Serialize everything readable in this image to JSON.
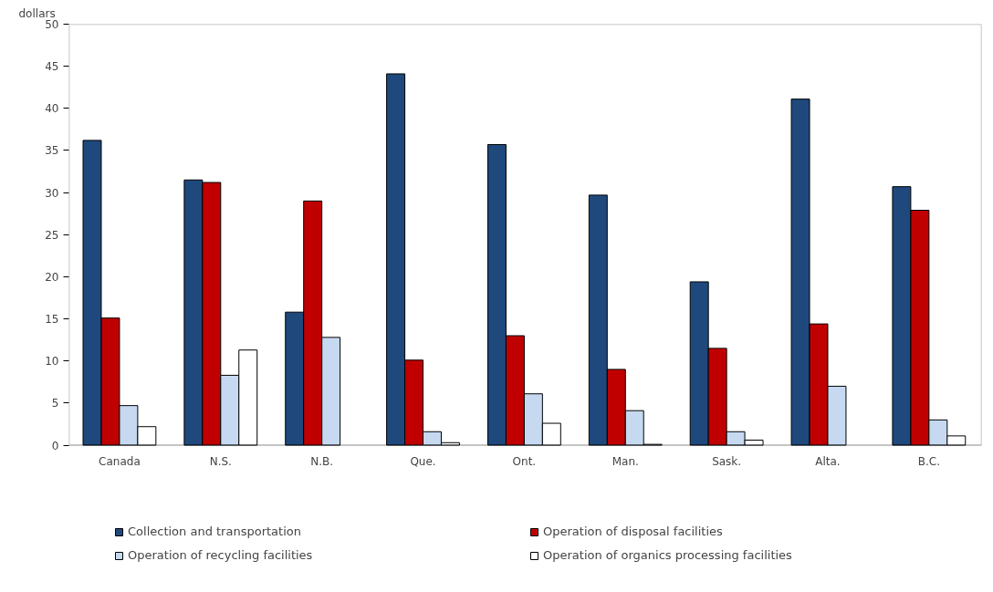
{
  "chart_data": {
    "type": "bar",
    "ylabel": "dollars",
    "categories": [
      "Canada",
      "N.S.",
      "N.B.",
      "Que.",
      "Ont.",
      "Man.",
      "Sask.",
      "Alta.",
      "B.C."
    ],
    "series": [
      {
        "name": "Collection and transportation",
        "color": "#1f497d",
        "values": [
          36.2,
          31.5,
          15.8,
          44.1,
          35.7,
          29.7,
          19.4,
          41.1,
          30.7
        ]
      },
      {
        "name": "Operation of disposal facilities",
        "color": "#c00000",
        "values": [
          15.1,
          31.2,
          29.0,
          10.1,
          13.0,
          9.0,
          11.5,
          14.4,
          27.9
        ]
      },
      {
        "name": "Operation of recycling facilities",
        "color": "#c6d9f1",
        "values": [
          4.7,
          8.3,
          12.8,
          1.6,
          6.1,
          4.1,
          1.6,
          7.0,
          3.0
        ]
      },
      {
        "name": "Operation of organics processing facilities",
        "color": "#ffffff",
        "values": [
          2.2,
          11.3,
          null,
          0.3,
          2.6,
          0.1,
          0.6,
          null,
          1.1
        ]
      }
    ],
    "ylim": [
      0,
      50
    ],
    "yticks": [
      0,
      5,
      10,
      15,
      20,
      25,
      30,
      35,
      40,
      45,
      50
    ],
    "grid": false,
    "legend": "bottom"
  }
}
